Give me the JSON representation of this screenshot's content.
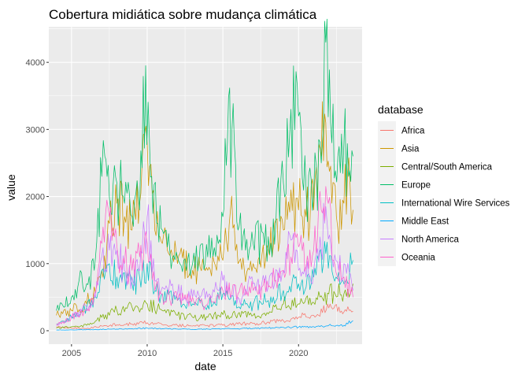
{
  "chart_data": {
    "type": "line",
    "title": "Cobertura midiática sobre mudança climática",
    "xlabel": "date",
    "ylabel": "value",
    "xlim": [
      2003.5,
      2024.2
    ],
    "ylim": [
      -200,
      4530
    ],
    "x_ticks": [
      2005,
      2010,
      2015,
      2020
    ],
    "y_ticks": [
      0,
      1000,
      2000,
      3000,
      4000
    ],
    "grid": true,
    "legend": {
      "title": "database",
      "placement": "right"
    },
    "series": [
      {
        "name": "Africa",
        "color": "#F8766D",
        "points": [
          [
            2004.0,
            60
          ],
          [
            2006.0,
            30
          ],
          [
            2007.0,
            70
          ],
          [
            2008.0,
            90
          ],
          [
            2009.0,
            100
          ],
          [
            2010.0,
            120
          ],
          [
            2011.0,
            90
          ],
          [
            2012.0,
            80
          ],
          [
            2013.0,
            70
          ],
          [
            2014.0,
            80
          ],
          [
            2015.0,
            80
          ],
          [
            2016.0,
            100
          ],
          [
            2017.0,
            110
          ],
          [
            2018.0,
            130
          ],
          [
            2019.0,
            150
          ],
          [
            2020.0,
            200
          ],
          [
            2021.0,
            230
          ],
          [
            2022.0,
            340
          ],
          [
            2023.0,
            280
          ],
          [
            2023.6,
            290
          ]
        ]
      },
      {
        "name": "Asia",
        "color": "#CD9600",
        "points": [
          [
            2004.0,
            230
          ],
          [
            2005.0,
            300
          ],
          [
            2006.0,
            400
          ],
          [
            2007.0,
            900
          ],
          [
            2007.5,
            1600
          ],
          [
            2008.0,
            1900
          ],
          [
            2008.5,
            1700
          ],
          [
            2009.0,
            1500
          ],
          [
            2009.5,
            1900
          ],
          [
            2010.0,
            2800
          ],
          [
            2010.5,
            1500
          ],
          [
            2011.0,
            1300
          ],
          [
            2012.0,
            1000
          ],
          [
            2013.0,
            900
          ],
          [
            2014.0,
            900
          ],
          [
            2015.0,
            1050
          ],
          [
            2015.5,
            1800
          ],
          [
            2016.0,
            1000
          ],
          [
            2017.0,
            1000
          ],
          [
            2018.0,
            1200
          ],
          [
            2019.0,
            1500
          ],
          [
            2019.5,
            2100
          ],
          [
            2020.0,
            1800
          ],
          [
            2020.5,
            1700
          ],
          [
            2021.0,
            1800
          ],
          [
            2021.5,
            2600
          ],
          [
            2021.8,
            3100
          ],
          [
            2022.2,
            1900
          ],
          [
            2022.5,
            1700
          ],
          [
            2023.0,
            1900
          ],
          [
            2023.4,
            2200
          ],
          [
            2023.6,
            1800
          ]
        ]
      },
      {
        "name": "Central/South America",
        "color": "#7CAE00",
        "points": [
          [
            2004.0,
            40
          ],
          [
            2005.0,
            60
          ],
          [
            2006.0,
            80
          ],
          [
            2007.0,
            200
          ],
          [
            2008.0,
            300
          ],
          [
            2009.0,
            350
          ],
          [
            2010.0,
            400
          ],
          [
            2011.0,
            300
          ],
          [
            2012.0,
            230
          ],
          [
            2013.0,
            200
          ],
          [
            2014.0,
            200
          ],
          [
            2015.0,
            240
          ],
          [
            2016.0,
            250
          ],
          [
            2017.0,
            230
          ],
          [
            2018.0,
            250
          ],
          [
            2019.0,
            400
          ],
          [
            2020.0,
            400
          ],
          [
            2021.0,
            420
          ],
          [
            2022.0,
            550
          ],
          [
            2023.0,
            550
          ],
          [
            2023.6,
            700
          ]
        ]
      },
      {
        "name": "Europe",
        "color": "#00BE67",
        "points": [
          [
            2004.0,
            300
          ],
          [
            2004.5,
            350
          ],
          [
            2005.0,
            500
          ],
          [
            2005.5,
            750
          ],
          [
            2006.0,
            700
          ],
          [
            2006.5,
            900
          ],
          [
            2007.0,
            2300
          ],
          [
            2007.2,
            2600
          ],
          [
            2007.5,
            2000
          ],
          [
            2008.0,
            2200
          ],
          [
            2008.5,
            1900
          ],
          [
            2009.0,
            1700
          ],
          [
            2009.5,
            1800
          ],
          [
            2009.9,
            3950
          ],
          [
            2010.3,
            2300
          ],
          [
            2010.7,
            1600
          ],
          [
            2011.0,
            1500
          ],
          [
            2012.0,
            1100
          ],
          [
            2013.0,
            1000
          ],
          [
            2014.0,
            1100
          ],
          [
            2014.7,
            1300
          ],
          [
            2015.0,
            1700
          ],
          [
            2015.3,
            2800
          ],
          [
            2015.6,
            3000
          ],
          [
            2016.0,
            1500
          ],
          [
            2016.5,
            1200
          ],
          [
            2017.0,
            1300
          ],
          [
            2018.0,
            1400
          ],
          [
            2018.5,
            1600
          ],
          [
            2019.0,
            2200
          ],
          [
            2019.5,
            3300
          ],
          [
            2020.0,
            3200
          ],
          [
            2020.5,
            2100
          ],
          [
            2021.0,
            2000
          ],
          [
            2021.5,
            2500
          ],
          [
            2021.8,
            4300
          ],
          [
            2022.2,
            2800
          ],
          [
            2022.6,
            2600
          ],
          [
            2023.0,
            2800
          ],
          [
            2023.3,
            2300
          ],
          [
            2023.6,
            2600
          ]
        ]
      },
      {
        "name": "International Wire Services",
        "color": "#00BFC4",
        "points": [
          [
            2004.0,
            100
          ],
          [
            2005.0,
            200
          ],
          [
            2006.0,
            350
          ],
          [
            2006.5,
            500
          ],
          [
            2007.0,
            900
          ],
          [
            2007.5,
            1000
          ],
          [
            2008.0,
            800
          ],
          [
            2009.0,
            700
          ],
          [
            2009.5,
            800
          ],
          [
            2010.0,
            1000
          ],
          [
            2010.5,
            600
          ],
          [
            2011.0,
            550
          ],
          [
            2012.0,
            450
          ],
          [
            2013.0,
            400
          ],
          [
            2014.0,
            380
          ],
          [
            2015.0,
            550
          ],
          [
            2016.0,
            350
          ],
          [
            2017.0,
            400
          ],
          [
            2018.0,
            450
          ],
          [
            2019.0,
            600
          ],
          [
            2020.0,
            700
          ],
          [
            2020.5,
            650
          ],
          [
            2021.0,
            800
          ],
          [
            2021.8,
            1150
          ],
          [
            2022.3,
            800
          ],
          [
            2023.0,
            700
          ],
          [
            2023.6,
            1050
          ]
        ]
      },
      {
        "name": "Middle East",
        "color": "#00A9FF",
        "points": [
          [
            2004.0,
            10
          ],
          [
            2006.0,
            15
          ],
          [
            2008.0,
            25
          ],
          [
            2009.0,
            30
          ],
          [
            2010.0,
            40
          ],
          [
            2011.0,
            30
          ],
          [
            2012.0,
            25
          ],
          [
            2013.0,
            20
          ],
          [
            2014.0,
            25
          ],
          [
            2015.0,
            30
          ],
          [
            2016.0,
            30
          ],
          [
            2017.0,
            35
          ],
          [
            2018.0,
            40
          ],
          [
            2019.0,
            50
          ],
          [
            2020.0,
            55
          ],
          [
            2021.0,
            60
          ],
          [
            2022.0,
            80
          ],
          [
            2023.0,
            80
          ],
          [
            2023.6,
            150
          ]
        ]
      },
      {
        "name": "North America",
        "color": "#C77CFF",
        "points": [
          [
            2004.0,
            80
          ],
          [
            2005.0,
            200
          ],
          [
            2006.0,
            350
          ],
          [
            2006.5,
            550
          ],
          [
            2007.0,
            1100
          ],
          [
            2007.5,
            1200
          ],
          [
            2008.0,
            1200
          ],
          [
            2008.5,
            900
          ],
          [
            2009.0,
            800
          ],
          [
            2009.5,
            900
          ],
          [
            2010.0,
            1700
          ],
          [
            2010.5,
            750
          ],
          [
            2011.0,
            650
          ],
          [
            2012.0,
            550
          ],
          [
            2013.0,
            500
          ],
          [
            2014.0,
            500
          ],
          [
            2014.7,
            600
          ],
          [
            2015.0,
            750
          ],
          [
            2016.0,
            500
          ],
          [
            2017.0,
            700
          ],
          [
            2018.0,
            650
          ],
          [
            2019.0,
            900
          ],
          [
            2019.5,
            1350
          ],
          [
            2020.0,
            900
          ],
          [
            2020.5,
            800
          ],
          [
            2021.0,
            900
          ],
          [
            2021.5,
            1200
          ],
          [
            2021.8,
            1850
          ],
          [
            2022.3,
            950
          ],
          [
            2023.0,
            1000
          ],
          [
            2023.6,
            600
          ]
        ]
      },
      {
        "name": "Oceania",
        "color": "#FF61CC",
        "points": [
          [
            2004.0,
            100
          ],
          [
            2005.0,
            200
          ],
          [
            2006.0,
            300
          ],
          [
            2006.5,
            550
          ],
          [
            2007.0,
            1300
          ],
          [
            2007.5,
            1700
          ],
          [
            2008.0,
            1250
          ],
          [
            2008.5,
            1000
          ],
          [
            2009.0,
            900
          ],
          [
            2009.5,
            1100
          ],
          [
            2010.0,
            1300
          ],
          [
            2010.5,
            600
          ],
          [
            2011.0,
            550
          ],
          [
            2012.0,
            450
          ],
          [
            2013.0,
            500
          ],
          [
            2014.0,
            400
          ],
          [
            2015.0,
            600
          ],
          [
            2016.0,
            550
          ],
          [
            2017.0,
            600
          ],
          [
            2018.0,
            650
          ],
          [
            2019.0,
            900
          ],
          [
            2019.5,
            1100
          ],
          [
            2020.0,
            1250
          ],
          [
            2020.5,
            950
          ],
          [
            2021.0,
            1200
          ],
          [
            2021.5,
            1800
          ],
          [
            2021.8,
            2150
          ],
          [
            2022.3,
            1050
          ],
          [
            2023.0,
            800
          ],
          [
            2023.6,
            500
          ]
        ]
      }
    ]
  }
}
